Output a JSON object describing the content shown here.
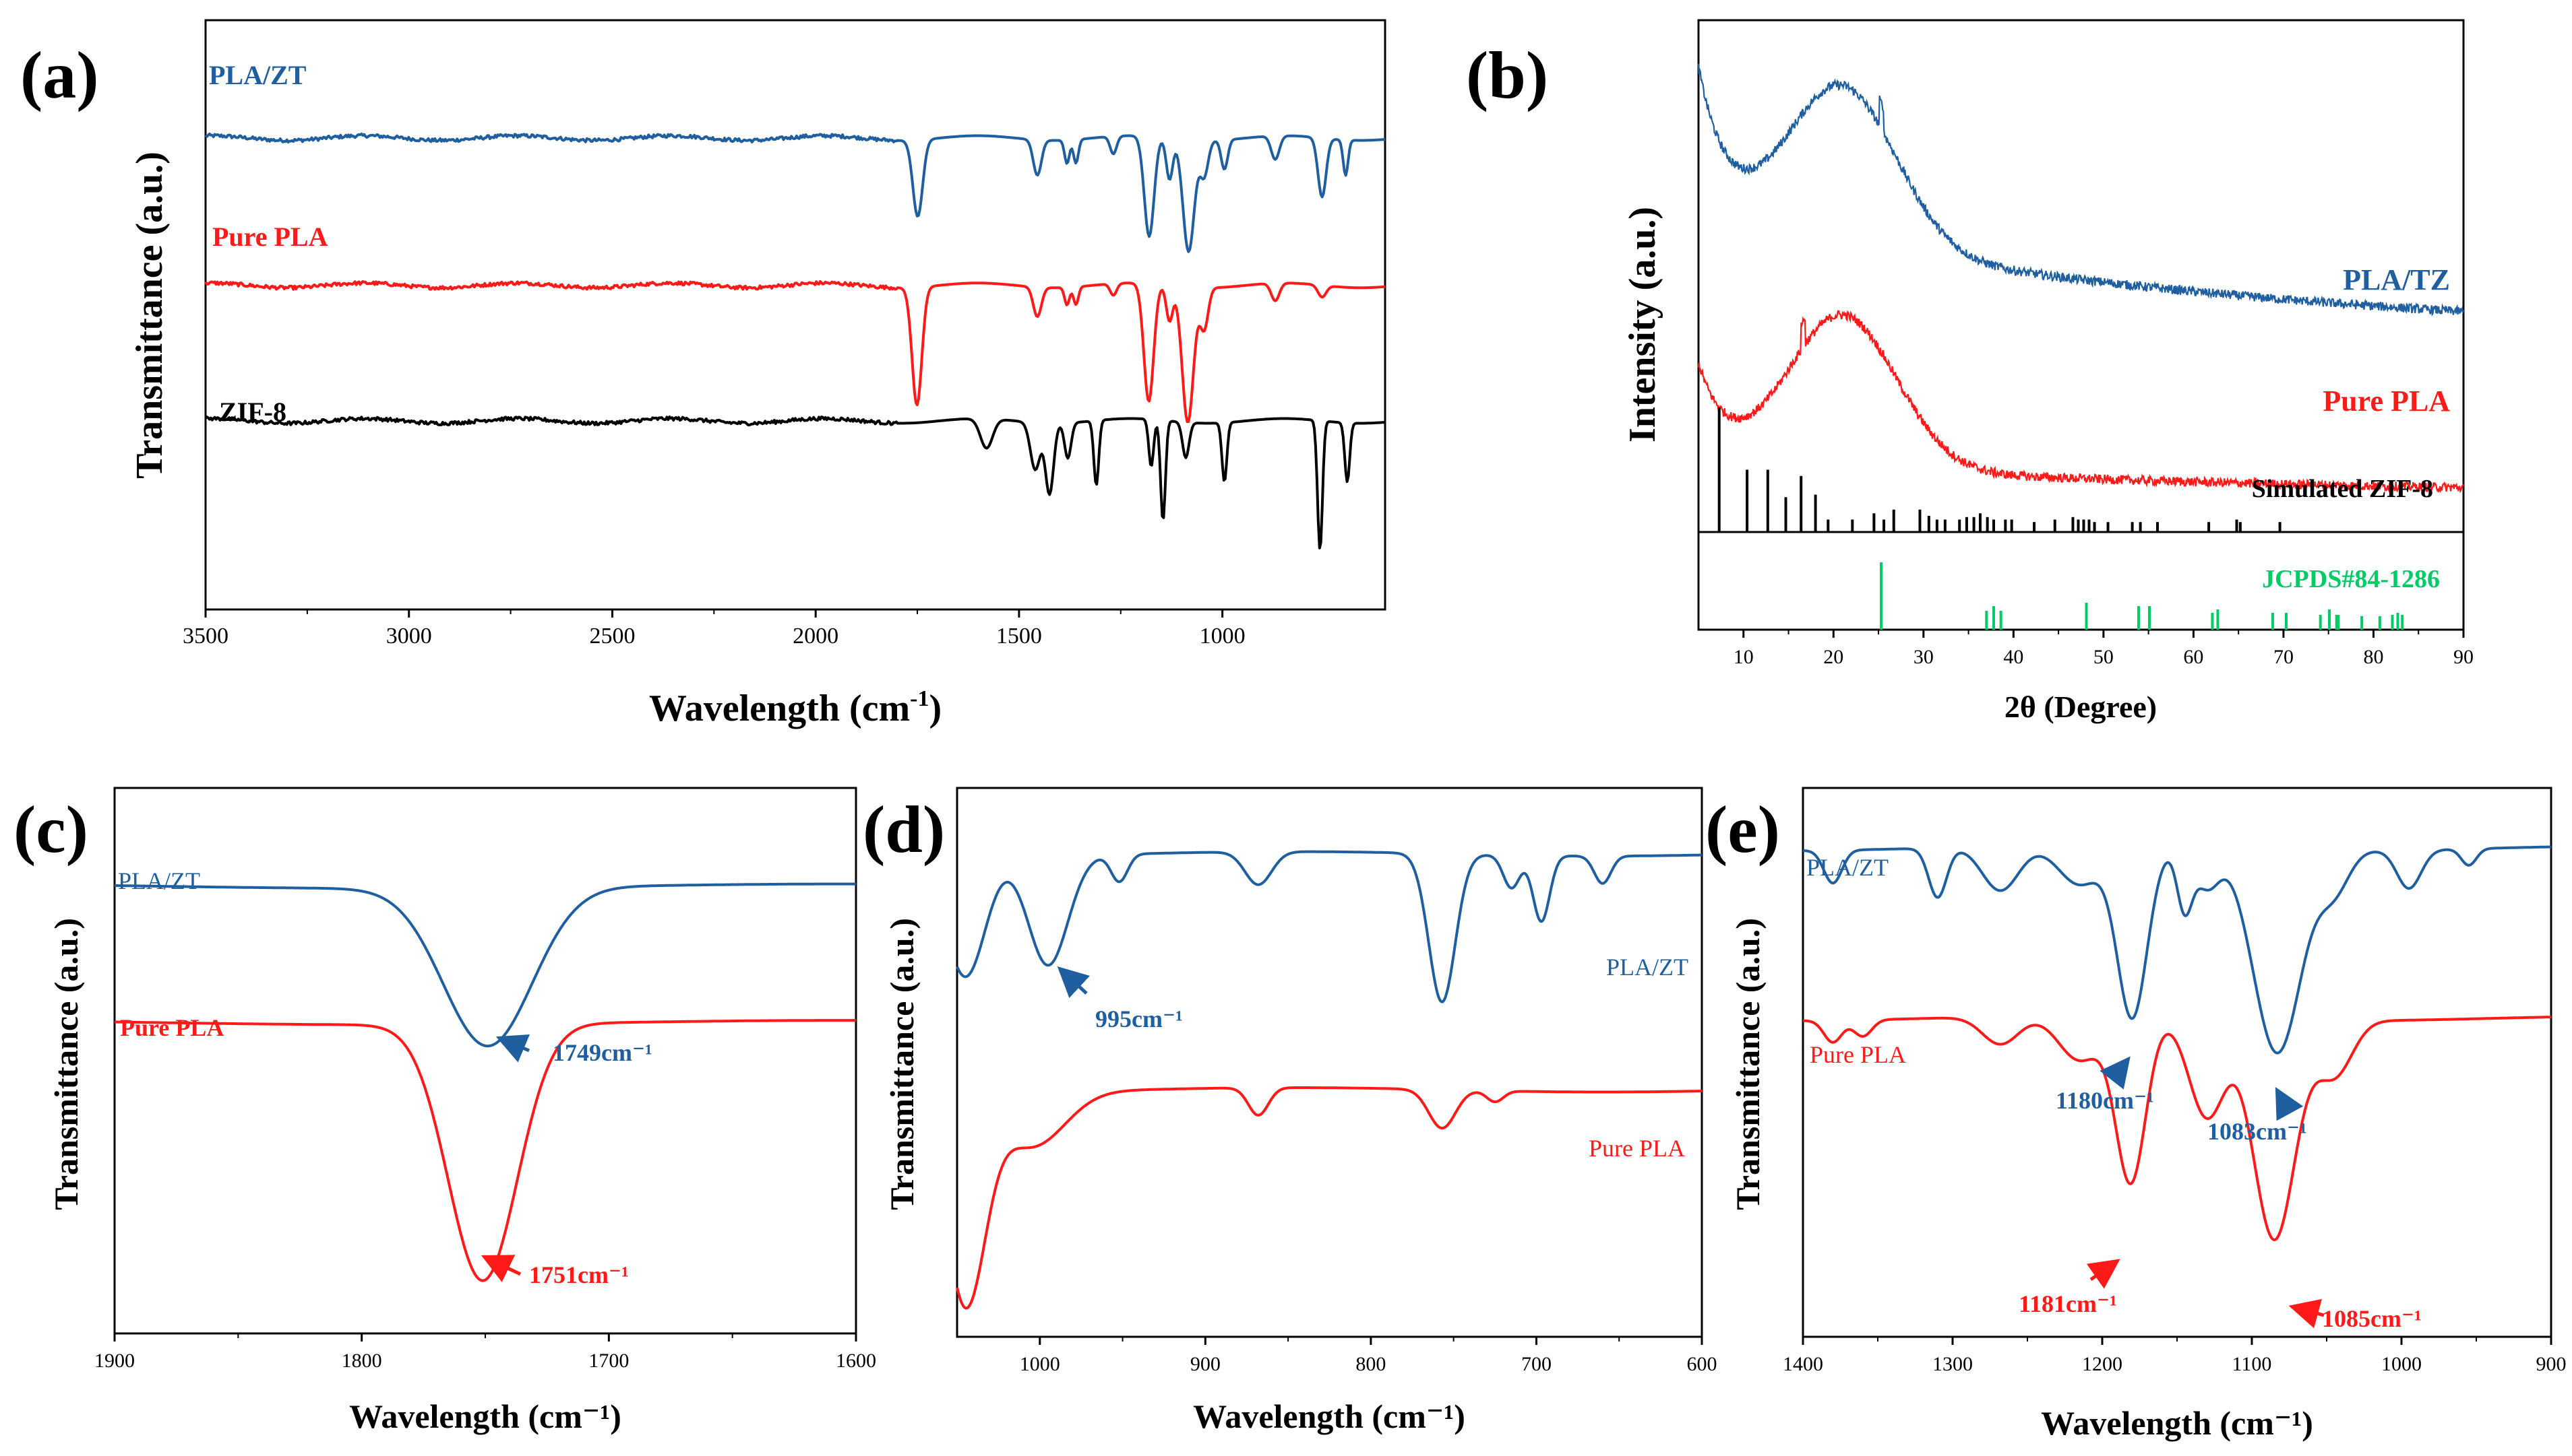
{
  "colors": {
    "pla_zt": "#1f5fa0",
    "pure_pla": "#ff1a1a",
    "zif8": "#000000",
    "jcpds": "#00cc66",
    "axis": "#000000"
  },
  "chart_data": [
    {
      "panel": "(a)",
      "type": "line",
      "xlabel": "Wavelength (cm",
      "xlabel_sup": "-1",
      "xlabel_end": ")",
      "ylabel": "Transmittance (a.u.)",
      "xlim": [
        3500,
        600
      ],
      "x_reversed": true,
      "xticks": [
        3500,
        3000,
        2500,
        2000,
        1500,
        1000
      ],
      "y_ticks_shown": false,
      "grid": false,
      "series": [
        {
          "name": "PLA/ZT",
          "color": "#1f5fa0",
          "offset": 0.8,
          "noise": true,
          "peaks": [
            [
              1749,
              0.13,
              12
            ],
            [
              1455,
              0.06,
              10
            ],
            [
              1382,
              0.04,
              6
            ],
            [
              1360,
              0.04,
              6
            ],
            [
              1268,
              0.03,
              8
            ],
            [
              1180,
              0.17,
              12
            ],
            [
              1130,
              0.07,
              8
            ],
            [
              1083,
              0.19,
              14
            ],
            [
              1045,
              0.06,
              10
            ],
            [
              995,
              0.05,
              8
            ],
            [
              870,
              0.04,
              10
            ],
            [
              755,
              0.1,
              10
            ],
            [
              697,
              0.06,
              6
            ]
          ]
        },
        {
          "name": "Pure PLA",
          "color": "#ff1a1a",
          "offset": 0.55,
          "noise": true,
          "peaks": [
            [
              1751,
              0.2,
              12
            ],
            [
              1455,
              0.05,
              10
            ],
            [
              1382,
              0.03,
              6
            ],
            [
              1360,
              0.03,
              6
            ],
            [
              1268,
              0.02,
              8
            ],
            [
              1181,
              0.2,
              12
            ],
            [
              1130,
              0.06,
              8
            ],
            [
              1085,
              0.23,
              14
            ],
            [
              1045,
              0.07,
              10
            ],
            [
              870,
              0.03,
              10
            ],
            [
              755,
              0.02,
              10
            ]
          ]
        },
        {
          "name": "ZIF-8",
          "color": "#000000",
          "offset": 0.32,
          "noise": true,
          "peaks": [
            [
              1580,
              0.05,
              15
            ],
            [
              1460,
              0.08,
              12
            ],
            [
              1425,
              0.12,
              10
            ],
            [
              1380,
              0.06,
              8
            ],
            [
              1310,
              0.11,
              6
            ],
            [
              1175,
              0.08,
              6
            ],
            [
              1146,
              0.17,
              6
            ],
            [
              1090,
              0.06,
              8
            ],
            [
              995,
              0.1,
              6
            ],
            [
              760,
              0.22,
              6
            ],
            [
              693,
              0.1,
              6
            ]
          ]
        }
      ]
    },
    {
      "panel": "(b)",
      "type": "line",
      "xlabel": "2θ (Degree)",
      "ylabel": "Intensity (a.u.)",
      "xlim": [
        5,
        90
      ],
      "xticks": [
        10,
        20,
        30,
        40,
        50,
        60,
        70,
        80,
        90
      ],
      "y_ticks_shown": false,
      "grid": false,
      "series": [
        {
          "name": "PLA/TZ",
          "color": "#1f5fa0",
          "shape": "amorphous",
          "base": 0.37,
          "hump": 0.31,
          "start": 0.29,
          "end": 0.25,
          "spike_at": 25.3
        },
        {
          "name": "Pure PLA",
          "color": "#ff1a1a",
          "shape": "amorphous",
          "base": 0.07,
          "hump": 0.3,
          "start": 0.19,
          "end": 0.07,
          "spike_at": 16.6
        }
      ],
      "stick_patterns": [
        {
          "name": "Simulated ZIF-8",
          "color": "#000000",
          "positions": [
            7.3,
            10.4,
            12.7,
            14.7,
            16.4,
            18.0,
            19.4,
            22.1,
            24.5,
            25.6,
            26.7,
            29.6,
            30.6,
            31.5,
            32.4,
            34.0,
            34.8,
            35.6,
            36.3,
            37.1,
            37.8,
            39.1,
            39.8,
            42.3,
            44.6,
            46.6,
            47.2,
            47.8,
            48.4,
            49.0,
            50.5,
            53.2,
            54.1,
            56.0,
            61.7,
            64.8,
            65.2,
            69.6
          ],
          "heights": [
            1.0,
            0.5,
            0.5,
            0.28,
            0.45,
            0.3,
            0.1,
            0.1,
            0.15,
            0.1,
            0.18,
            0.18,
            0.13,
            0.1,
            0.1,
            0.1,
            0.12,
            0.12,
            0.15,
            0.12,
            0.1,
            0.1,
            0.1,
            0.08,
            0.1,
            0.12,
            0.1,
            0.1,
            0.1,
            0.08,
            0.08,
            0.08,
            0.08,
            0.08,
            0.08,
            0.1,
            0.08,
            0.08
          ]
        },
        {
          "name": "JCPDS#84-1286",
          "color": "#00cc66",
          "positions": [
            25.3,
            37.0,
            37.8,
            38.6,
            48.1,
            53.9,
            55.1,
            62.1,
            62.7,
            68.8,
            70.3,
            74.1,
            75.1,
            75.9,
            76.1,
            78.7,
            80.7,
            82.1,
            82.7,
            83.2
          ],
          "heights": [
            1.0,
            0.28,
            0.35,
            0.28,
            0.4,
            0.35,
            0.35,
            0.25,
            0.3,
            0.25,
            0.25,
            0.22,
            0.3,
            0.22,
            0.22,
            0.2,
            0.2,
            0.22,
            0.25,
            0.22
          ]
        }
      ]
    },
    {
      "panel": "(c)",
      "type": "line",
      "xlabel": "Wavelength (cm⁻¹)",
      "ylabel": "Transmittance (a.u.)",
      "xlim": [
        1900,
        1600
      ],
      "x_reversed": true,
      "xticks": [
        1900,
        1800,
        1700,
        1600
      ],
      "y_ticks_shown": false,
      "grid": false,
      "series": [
        {
          "name": "PLA/ZT",
          "color": "#1f5fa0",
          "offset": 0.82,
          "peaks": [
            [
              1749,
              0.29,
              18
            ]
          ]
        },
        {
          "name": "Pure PLA",
          "color": "#ff1a1a",
          "offset": 0.57,
          "peaks": [
            [
              1751,
              0.47,
              14
            ]
          ]
        }
      ],
      "annotations": [
        {
          "text": "1749cm⁻¹",
          "color": "#1f5fa0",
          "x": 1749
        },
        {
          "text": "1751cm⁻¹",
          "color": "#ff1a1a",
          "x": 1751
        }
      ]
    },
    {
      "panel": "(d)",
      "type": "line",
      "xlabel": "Wavelength (cm⁻¹)",
      "ylabel": "Transmittance (a.u.)",
      "xlim": [
        1050,
        600
      ],
      "x_reversed": true,
      "xticks": [
        1000,
        900,
        800,
        700,
        600
      ],
      "y_ticks_shown": false,
      "grid": false,
      "series": [
        {
          "name": "PLA/ZT",
          "color": "#1f5fa0",
          "offset": 0.88,
          "peaks": [
            [
              1045,
              0.22,
              12
            ],
            [
              995,
              0.2,
              12
            ],
            [
              952,
              0.05,
              5
            ],
            [
              868,
              0.06,
              8
            ],
            [
              757,
              0.27,
              8
            ],
            [
              715,
              0.06,
              5
            ],
            [
              697,
              0.12,
              5
            ],
            [
              660,
              0.05,
              5
            ]
          ]
        },
        {
          "name": "Pure PLA",
          "color": "#ff1a1a",
          "offset": 0.45,
          "peaks": [
            [
              1045,
              0.38,
              12
            ],
            [
              1005,
              0.1,
              20
            ],
            [
              868,
              0.05,
              6
            ],
            [
              757,
              0.07,
              8
            ],
            [
              725,
              0.02,
              5
            ]
          ]
        }
      ],
      "annotations": [
        {
          "text": "995cm⁻¹",
          "color": "#1f5fa0",
          "x": 995
        }
      ]
    },
    {
      "panel": "(e)",
      "type": "line",
      "xlabel": "Wavelength (cm⁻¹)",
      "ylabel": "Transmittance (a.u.)",
      "xlim": [
        1400,
        900
      ],
      "x_reversed": true,
      "xticks": [
        1400,
        1300,
        1200,
        1100,
        1000,
        900
      ],
      "y_ticks_shown": false,
      "grid": false,
      "series": [
        {
          "name": "PLA/ZT",
          "color": "#1f5fa0",
          "offset": 0.89,
          "peaks": [
            [
              1380,
              0.06,
              6
            ],
            [
              1310,
              0.09,
              6
            ],
            [
              1268,
              0.08,
              12
            ],
            [
              1215,
              0.07,
              14
            ],
            [
              1180,
              0.31,
              10
            ],
            [
              1145,
              0.11,
              5
            ],
            [
              1130,
              0.07,
              8
            ],
            [
              1083,
              0.37,
              16
            ],
            [
              1045,
              0.07,
              10
            ],
            [
              995,
              0.07,
              8
            ],
            [
              955,
              0.03,
              5
            ]
          ]
        },
        {
          "name": "Pure PLA",
          "color": "#ff1a1a",
          "offset": 0.58,
          "peaks": [
            [
              1380,
              0.04,
              6
            ],
            [
              1360,
              0.03,
              6
            ],
            [
              1268,
              0.05,
              12
            ],
            [
              1215,
              0.08,
              14
            ],
            [
              1181,
              0.3,
              10
            ],
            [
              1130,
              0.18,
              12
            ],
            [
              1085,
              0.4,
              14
            ],
            [
              1045,
              0.1,
              12
            ]
          ]
        }
      ],
      "annotations": [
        {
          "text": "1180cm⁻¹",
          "color": "#1f5fa0",
          "x": 1180
        },
        {
          "text": "1083cm⁻¹",
          "color": "#1f5fa0",
          "x": 1083
        },
        {
          "text": "1181cm⁻¹",
          "color": "#ff1a1a",
          "x": 1181
        },
        {
          "text": "1085cm⁻¹",
          "color": "#ff1a1a",
          "x": 1085
        }
      ]
    }
  ]
}
